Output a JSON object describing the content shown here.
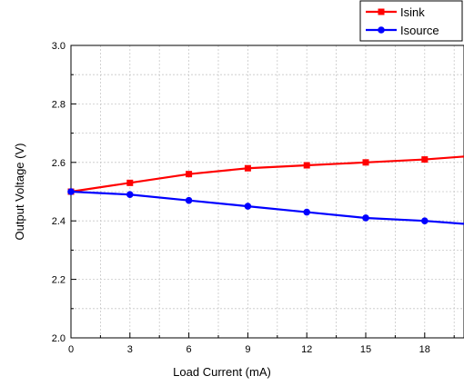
{
  "chart_data": {
    "type": "line",
    "title": "",
    "xlabel": "Load Current (mA)",
    "ylabel": "Output Voltage (V)",
    "xlim": [
      0,
      20
    ],
    "ylim": [
      2.0,
      3.0
    ],
    "xticks": [
      "0",
      "3",
      "6",
      "9",
      "12",
      "15",
      "18"
    ],
    "yticks": [
      "2.0",
      "2.2",
      "2.4",
      "2.6",
      "2.8",
      "3.0"
    ],
    "grid": true,
    "legend_position": "top-right",
    "series": [
      {
        "name": "Isink",
        "color": "#ff0000",
        "marker": "square",
        "x": [
          0,
          3,
          6,
          9,
          12,
          15,
          18,
          20
        ],
        "y": [
          2.5,
          2.53,
          2.56,
          2.58,
          2.59,
          2.6,
          2.61,
          2.62
        ]
      },
      {
        "name": "Isource",
        "color": "#0000ff",
        "marker": "circle",
        "x": [
          0,
          3,
          6,
          9,
          12,
          15,
          18,
          20
        ],
        "y": [
          2.5,
          2.49,
          2.47,
          2.45,
          2.43,
          2.41,
          2.4,
          2.39
        ]
      }
    ]
  }
}
